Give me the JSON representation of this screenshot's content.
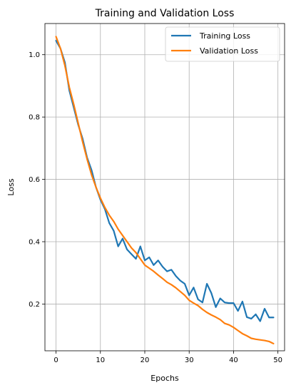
{
  "chart_data": {
    "type": "line",
    "title": "Training and Validation Loss",
    "xlabel": "Epochs",
    "ylabel": "Loss",
    "xlim": [
      -2.5,
      51.5
    ],
    "ylim": [
      0.05,
      1.1
    ],
    "xticks": [
      0,
      10,
      20,
      30,
      40,
      50
    ],
    "yticks": [
      0.2,
      0.4,
      0.6,
      0.8,
      1.0
    ],
    "ytick_labels": [
      "0.2",
      "0.4",
      "0.6",
      "0.8",
      "1.0"
    ],
    "grid": true,
    "legend_position": "top-right",
    "x": [
      0,
      1,
      2,
      3,
      4,
      5,
      6,
      7,
      8,
      9,
      10,
      11,
      12,
      13,
      14,
      15,
      16,
      17,
      18,
      19,
      20,
      21,
      22,
      23,
      24,
      25,
      26,
      27,
      28,
      29,
      30,
      31,
      32,
      33,
      34,
      35,
      36,
      37,
      38,
      39,
      40,
      41,
      42,
      43,
      44,
      45,
      46,
      47,
      48,
      49
    ],
    "series": [
      {
        "name": "Training Loss",
        "color": "#1f77b4",
        "values": [
          1.045,
          1.02,
          0.975,
          0.885,
          0.83,
          0.775,
          0.73,
          0.67,
          0.63,
          0.575,
          0.535,
          0.505,
          0.46,
          0.435,
          0.385,
          0.41,
          0.375,
          0.36,
          0.345,
          0.385,
          0.34,
          0.35,
          0.325,
          0.34,
          0.32,
          0.305,
          0.31,
          0.29,
          0.275,
          0.265,
          0.228,
          0.253,
          0.215,
          0.205,
          0.265,
          0.235,
          0.19,
          0.218,
          0.205,
          0.203,
          0.203,
          0.178,
          0.208,
          0.158,
          0.153,
          0.167,
          0.145,
          0.185,
          0.157,
          0.157
        ]
      },
      {
        "name": "Validation Loss",
        "color": "#ff7f0e",
        "values": [
          1.058,
          1.02,
          0.965,
          0.895,
          0.84,
          0.78,
          0.72,
          0.665,
          0.615,
          0.575,
          0.54,
          0.51,
          0.485,
          0.465,
          0.44,
          0.42,
          0.4,
          0.38,
          0.365,
          0.345,
          0.325,
          0.315,
          0.305,
          0.293,
          0.282,
          0.27,
          0.262,
          0.252,
          0.24,
          0.228,
          0.212,
          0.203,
          0.195,
          0.183,
          0.173,
          0.165,
          0.158,
          0.15,
          0.138,
          0.133,
          0.125,
          0.115,
          0.105,
          0.098,
          0.09,
          0.087,
          0.085,
          0.083,
          0.08,
          0.073
        ]
      }
    ]
  }
}
